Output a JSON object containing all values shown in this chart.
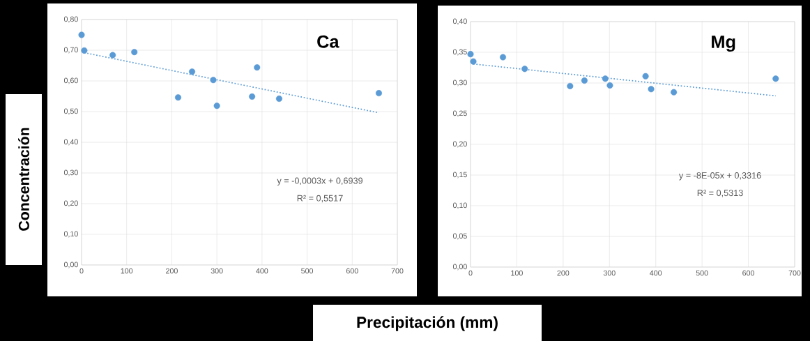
{
  "chart_data": [
    {
      "type": "scatter",
      "title": "Ca",
      "xlabel": "Precipitación (mm)",
      "ylabel": "Concentración",
      "annotations": [
        "y = -0,0003x + 0,6939",
        "R² = 0,5517"
      ],
      "series": [
        {
          "color": "#5b9bd5",
          "marker": "circle",
          "x": [
            0,
            6,
            69,
            117,
            214,
            245,
            292,
            300,
            378,
            389,
            438,
            659
          ],
          "values": [
            0.75,
            0.699,
            0.684,
            0.694,
            0.546,
            0.63,
            0.603,
            0.519,
            0.549,
            0.644,
            0.542,
            0.56
          ]
        },
        {
          "type": "line",
          "color": "#5b9bd5",
          "marker": "none",
          "line_style": "dotted",
          "x": [
            6,
            659
          ],
          "values": [
            0.692,
            0.496
          ]
        }
      ],
      "xlim": [
        0,
        700
      ],
      "xticks": [
        0,
        100,
        200,
        300,
        400,
        500,
        600,
        700
      ],
      "ylim": [
        0,
        0.8
      ],
      "yticks": [
        {
          "value": 0,
          "label": "0,00"
        },
        {
          "value": 0.1,
          "label": "0,10"
        },
        {
          "value": 0.2,
          "label": "0,20"
        },
        {
          "value": 0.3,
          "label": "0,30"
        },
        {
          "value": 0.4,
          "label": "0,40"
        },
        {
          "value": 0.5,
          "label": "0,50"
        },
        {
          "value": 0.6,
          "label": "0,60"
        },
        {
          "value": 0.7,
          "label": "0,70"
        },
        {
          "value": 0.8,
          "label": "0,80"
        }
      ],
      "grid": true
    },
    {
      "type": "scatter",
      "title": "Mg",
      "annotations": [
        "y = -8E-05x + 0,3316",
        "R² = 0,5313"
      ],
      "series": [
        {
          "color": "#5b9bd5",
          "marker": "circle",
          "x": [
            0,
            6,
            70,
            117,
            215,
            246,
            291,
            301,
            378,
            390,
            439,
            659
          ],
          "values": [
            0.347,
            0.335,
            0.342,
            0.323,
            0.295,
            0.304,
            0.307,
            0.296,
            0.311,
            0.29,
            0.285,
            0.307
          ]
        },
        {
          "type": "line",
          "color": "#5b9bd5",
          "marker": "none",
          "line_style": "dotted",
          "x": [
            6,
            659
          ],
          "values": [
            0.331,
            0.279
          ]
        }
      ],
      "xlim": [
        0,
        700
      ],
      "xticks": [
        0,
        100,
        200,
        300,
        400,
        500,
        600,
        700
      ],
      "ylim": [
        0,
        0.4
      ],
      "yticks": [
        {
          "value": 0,
          "label": "0,00"
        },
        {
          "value": 0.05,
          "label": "0,05"
        },
        {
          "value": 0.1,
          "label": "0,10"
        },
        {
          "value": 0.15,
          "label": "0,15"
        },
        {
          "value": 0.2,
          "label": "0,20"
        },
        {
          "value": 0.25,
          "label": "0,25"
        },
        {
          "value": 0.3,
          "label": "0,30"
        },
        {
          "value": 0.35,
          "label": "0,35"
        },
        {
          "value": 0.4,
          "label": "0,40"
        }
      ],
      "grid": true
    }
  ]
}
